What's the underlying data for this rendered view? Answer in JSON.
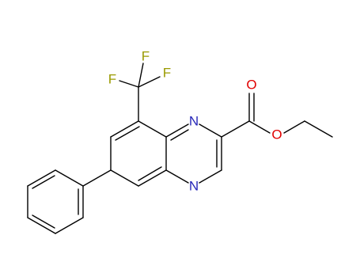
{
  "atoms": [
    {
      "label": "F"
    },
    {
      "label": "F"
    },
    {
      "label": "F"
    },
    {
      "label": "N"
    },
    {
      "label": "N"
    },
    {
      "label": "O"
    },
    {
      "label": "O"
    }
  ]
}
